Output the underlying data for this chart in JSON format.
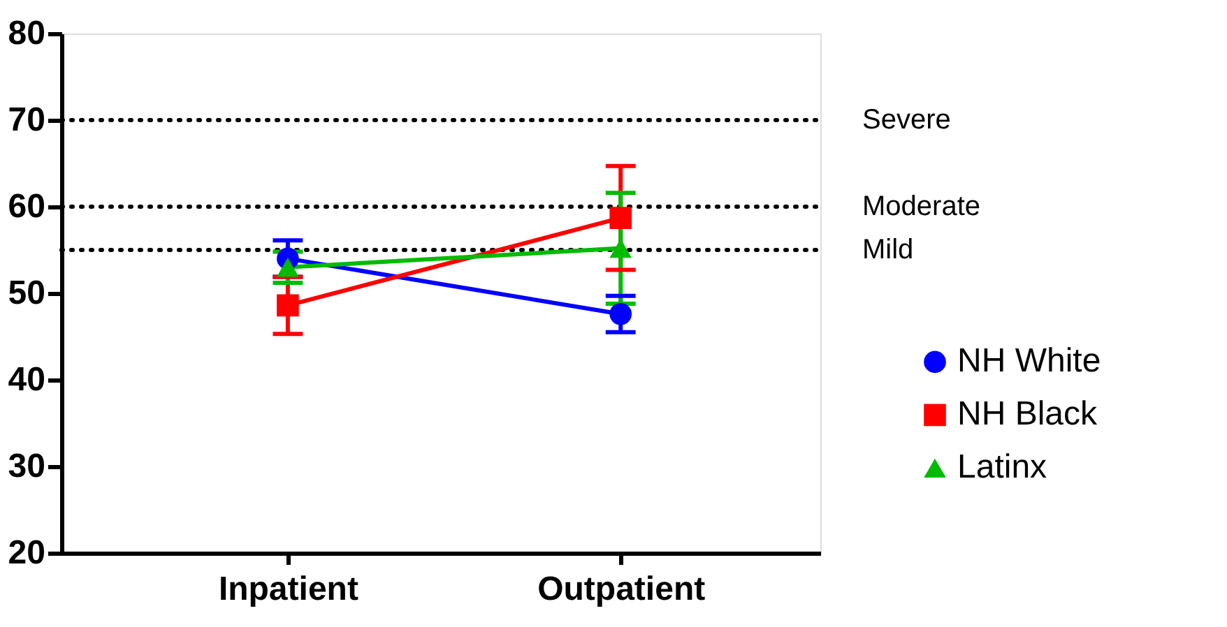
{
  "chart_data": {
    "type": "line",
    "categories": [
      "Inpatient",
      "Outpatient"
    ],
    "ylim": [
      20,
      80
    ],
    "yticks": [
      20,
      30,
      40,
      50,
      60,
      70,
      80
    ],
    "grid": false,
    "legend": "right",
    "line_style": "solid",
    "series": [
      {
        "name": "NH White",
        "color": "#0000ff",
        "marker": "circle",
        "values": [
          54.0,
          47.6
        ],
        "errors": [
          2.1,
          2.1
        ]
      },
      {
        "name": "NH Black",
        "color": "#ff0000",
        "marker": "square",
        "values": [
          48.6,
          58.7
        ],
        "errors": [
          3.3,
          6.0
        ]
      },
      {
        "name": "Latinx",
        "color": "#00bb00",
        "marker": "triangle",
        "values": [
          53.0,
          55.2
        ],
        "errors": [
          1.8,
          6.4
        ]
      }
    ],
    "ref_lines": [
      {
        "axis": "y",
        "value": 70,
        "label": "Severe",
        "color": "#000000",
        "line_style": "dotted"
      },
      {
        "axis": "y",
        "value": 60,
        "label": "Moderate",
        "color": "#000000",
        "line_style": "dotted"
      },
      {
        "axis": "y",
        "value": 55,
        "label": "Mild",
        "color": "#000000",
        "line_style": "dotted"
      }
    ]
  }
}
